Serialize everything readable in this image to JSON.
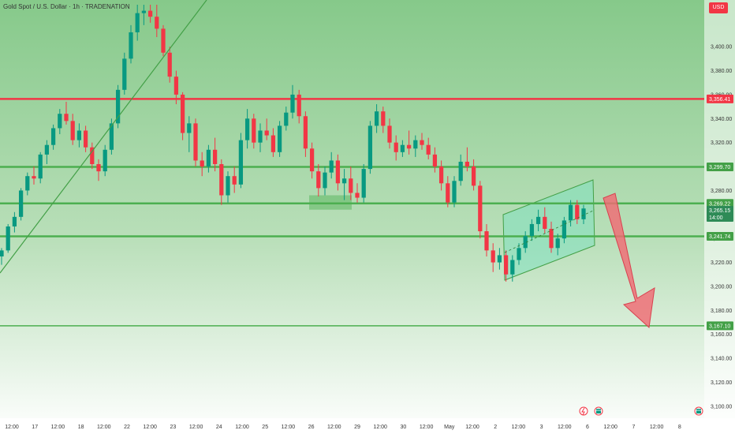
{
  "header": {
    "title": "Gold Spot / U.S. Dollar · 1h · TRADENATION",
    "currency": "USD"
  },
  "colors": {
    "background_top": "#86c98a",
    "background_bottom": "#ffffff",
    "up_candle": "#089981",
    "down_candle": "#f23645",
    "resistance_line": "#f23645",
    "support_line": "#4caf50",
    "channel_fill": "#7fe0c0",
    "trendline": "#43a047",
    "arrow": "#f06b74",
    "axis_text": "#333333"
  },
  "icons": [
    "lightning-icon",
    "calendar-flag-icon"
  ],
  "chart_data": {
    "type": "candlestick",
    "symbol": "Gold Spot / U.S. Dollar",
    "timeframe": "1h",
    "source": "TRADENATION",
    "y_axis": {
      "label": "",
      "unit": "USD",
      "range": [
        3090,
        3435
      ],
      "ticks": [
        "3,400.00",
        "3,380.00",
        "3,360.00",
        "3,340.00",
        "3,320.00",
        "3,300.00",
        "3,280.00",
        "3,260.00",
        "3,240.00",
        "3,220.00",
        "3,200.00",
        "3,180.00",
        "3,160.00",
        "3,140.00",
        "3,120.00",
        "3,100.00"
      ]
    },
    "x_axis": {
      "ticks": [
        "12:00",
        "17",
        "12:00",
        "18",
        "12:00",
        "22",
        "12:00",
        "23",
        "12:00",
        "24",
        "12:00",
        "25",
        "12:00",
        "26",
        "12:00",
        "29",
        "12:00",
        "30",
        "12:00",
        "May",
        "12:00",
        "2",
        "12:00",
        "3",
        "12:00",
        "6",
        "12:00",
        "7",
        "12:00",
        "8"
      ]
    },
    "horizontal_levels": [
      {
        "price": 3356.41,
        "label": "3,356.41",
        "role": "resistance"
      },
      {
        "price": 3299.7,
        "label": "3,299.70",
        "role": "support"
      },
      {
        "price": 3269.22,
        "label": "3,269.22",
        "role": "support"
      },
      {
        "price": 3241.74,
        "label": "3,241.74",
        "role": "support"
      },
      {
        "price": 3167.1,
        "label": "3,167.10",
        "role": "target"
      }
    ],
    "current_price": {
      "price": 3265.15,
      "label": "3,265.15",
      "countdown": "14:00"
    },
    "candle_series": [
      [
        3225,
        3232,
        3218,
        3230
      ],
      [
        3230,
        3252,
        3228,
        3250
      ],
      [
        3250,
        3262,
        3245,
        3258
      ],
      [
        3258,
        3282,
        3255,
        3280
      ],
      [
        3280,
        3295,
        3276,
        3292
      ],
      [
        3292,
        3300,
        3285,
        3290
      ],
      [
        3290,
        3312,
        3286,
        3310
      ],
      [
        3310,
        3322,
        3302,
        3318
      ],
      [
        3318,
        3335,
        3314,
        3332
      ],
      [
        3332,
        3348,
        3327,
        3344
      ],
      [
        3344,
        3354,
        3335,
        3338
      ],
      [
        3338,
        3344,
        3318,
        3322
      ],
      [
        3322,
        3336,
        3316,
        3330
      ],
      [
        3330,
        3334,
        3312,
        3316
      ],
      [
        3316,
        3320,
        3298,
        3302
      ],
      [
        3302,
        3306,
        3288,
        3296
      ],
      [
        3296,
        3318,
        3292,
        3314
      ],
      [
        3314,
        3340,
        3310,
        3336
      ],
      [
        3336,
        3368,
        3332,
        3364
      ],
      [
        3364,
        3395,
        3360,
        3390
      ],
      [
        3390,
        3418,
        3386,
        3412
      ],
      [
        3412,
        3435,
        3405,
        3428
      ],
      [
        3428,
        3435,
        3418,
        3430
      ],
      [
        3430,
        3435,
        3420,
        3425
      ],
      [
        3425,
        3435,
        3408,
        3415
      ],
      [
        3415,
        3418,
        3392,
        3395
      ],
      [
        3395,
        3400,
        3370,
        3375
      ],
      [
        3375,
        3380,
        3352,
        3360
      ],
      [
        3360,
        3362,
        3322,
        3328
      ],
      [
        3328,
        3342,
        3312,
        3336
      ],
      [
        3336,
        3340,
        3300,
        3305
      ],
      [
        3305,
        3312,
        3292,
        3300
      ],
      [
        3300,
        3318,
        3295,
        3314
      ],
      [
        3314,
        3324,
        3296,
        3302
      ],
      [
        3302,
        3306,
        3268,
        3276
      ],
      [
        3276,
        3296,
        3270,
        3292
      ],
      [
        3292,
        3300,
        3278,
        3285
      ],
      [
        3285,
        3328,
        3282,
        3322
      ],
      [
        3322,
        3348,
        3315,
        3340
      ],
      [
        3340,
        3344,
        3315,
        3320
      ],
      [
        3320,
        3336,
        3312,
        3330
      ],
      [
        3330,
        3340,
        3322,
        3326
      ],
      [
        3326,
        3332,
        3308,
        3312
      ],
      [
        3312,
        3338,
        3308,
        3334
      ],
      [
        3334,
        3350,
        3330,
        3345
      ],
      [
        3345,
        3368,
        3340,
        3360
      ],
      [
        3360,
        3364,
        3336,
        3342
      ],
      [
        3342,
        3346,
        3308,
        3315
      ],
      [
        3315,
        3320,
        3290,
        3296
      ],
      [
        3296,
        3302,
        3275,
        3282
      ],
      [
        3282,
        3300,
        3276,
        3295
      ],
      [
        3295,
        3312,
        3290,
        3305
      ],
      [
        3305,
        3310,
        3280,
        3286
      ],
      [
        3286,
        3298,
        3272,
        3290
      ],
      [
        3290,
        3300,
        3272,
        3278
      ],
      [
        3278,
        3286,
        3270,
        3274
      ],
      [
        3274,
        3302,
        3270,
        3298
      ],
      [
        3298,
        3338,
        3294,
        3334
      ],
      [
        3334,
        3352,
        3328,
        3346
      ],
      [
        3346,
        3350,
        3328,
        3334
      ],
      [
        3334,
        3340,
        3315,
        3320
      ],
      [
        3320,
        3326,
        3305,
        3312
      ],
      [
        3312,
        3322,
        3308,
        3318
      ],
      [
        3318,
        3330,
        3310,
        3315
      ],
      [
        3315,
        3326,
        3308,
        3322
      ],
      [
        3322,
        3328,
        3314,
        3318
      ],
      [
        3318,
        3324,
        3306,
        3310
      ],
      [
        3310,
        3316,
        3295,
        3300
      ],
      [
        3300,
        3305,
        3280,
        3286
      ],
      [
        3286,
        3292,
        3266,
        3270
      ],
      [
        3270,
        3292,
        3266,
        3288
      ],
      [
        3288,
        3310,
        3284,
        3304
      ],
      [
        3304,
        3316,
        3296,
        3300
      ],
      [
        3300,
        3306,
        3280,
        3284
      ],
      [
        3284,
        3288,
        3240,
        3246
      ],
      [
        3246,
        3252,
        3225,
        3230
      ],
      [
        3230,
        3236,
        3212,
        3220
      ],
      [
        3220,
        3232,
        3214,
        3226
      ],
      [
        3226,
        3230,
        3204,
        3210
      ],
      [
        3210,
        3226,
        3204,
        3222
      ],
      [
        3222,
        3236,
        3218,
        3232
      ],
      [
        3232,
        3246,
        3228,
        3242
      ],
      [
        3242,
        3256,
        3238,
        3252
      ],
      [
        3252,
        3264,
        3246,
        3258
      ],
      [
        3258,
        3266,
        3244,
        3248
      ],
      [
        3248,
        3254,
        3228,
        3232
      ],
      [
        3232,
        3244,
        3226,
        3240
      ],
      [
        3240,
        3258,
        3236,
        3255
      ],
      [
        3255,
        3272,
        3250,
        3268
      ],
      [
        3268,
        3272,
        3252,
        3256
      ],
      [
        3256,
        3268,
        3252,
        3265
      ]
    ],
    "annotations": [
      {
        "type": "rectangle",
        "description": "consolidation zone",
        "price_range": [
          3264,
          3276
        ]
      },
      {
        "type": "rising_channel",
        "description": "ascending channel"
      },
      {
        "type": "trendline",
        "description": "rising trendline"
      },
      {
        "type": "arrow",
        "description": "bearish projection",
        "target": 3167.1
      }
    ]
  }
}
